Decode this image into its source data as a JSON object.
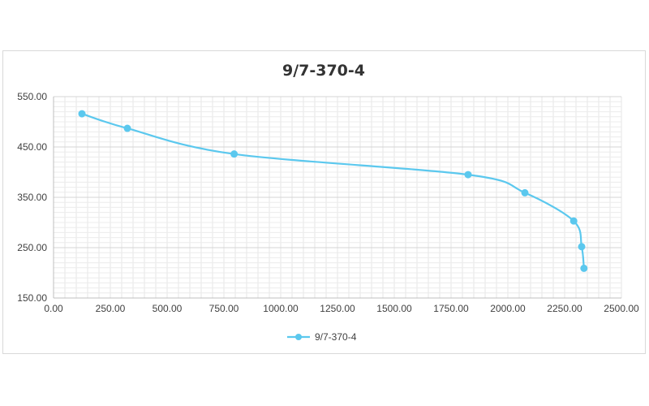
{
  "chart_data": {
    "type": "line",
    "title": "9/7-370-4",
    "xlabel": "",
    "ylabel": "",
    "xlim": [
      0,
      2500
    ],
    "ylim": [
      150,
      550
    ],
    "x_ticks": [
      "0.00",
      "250.00",
      "500.00",
      "750.00",
      "1000.00",
      "1250.00",
      "1500.00",
      "1750.00",
      "2000.00",
      "2250.00",
      "2500.00"
    ],
    "y_ticks": [
      "150.00",
      "250.00",
      "350.00",
      "450.00",
      "550.00"
    ],
    "x_tick_values": [
      0,
      250,
      500,
      750,
      1000,
      1250,
      1500,
      1750,
      2000,
      2250,
      2500
    ],
    "y_tick_values": [
      150,
      250,
      350,
      450,
      550
    ],
    "grid": true,
    "legend_position": "bottom",
    "series": [
      {
        "name": "9/7-370-4",
        "color": "#5bc8ee",
        "smooth": true,
        "points": [
          {
            "x": 125,
            "y": 516
          },
          {
            "x": 325,
            "y": 487
          },
          {
            "x": 795,
            "y": 436
          },
          {
            "x": 1825,
            "y": 395
          },
          {
            "x": 2075,
            "y": 359
          },
          {
            "x": 2290,
            "y": 303
          },
          {
            "x": 2325,
            "y": 252
          },
          {
            "x": 2335,
            "y": 209
          }
        ]
      }
    ]
  }
}
